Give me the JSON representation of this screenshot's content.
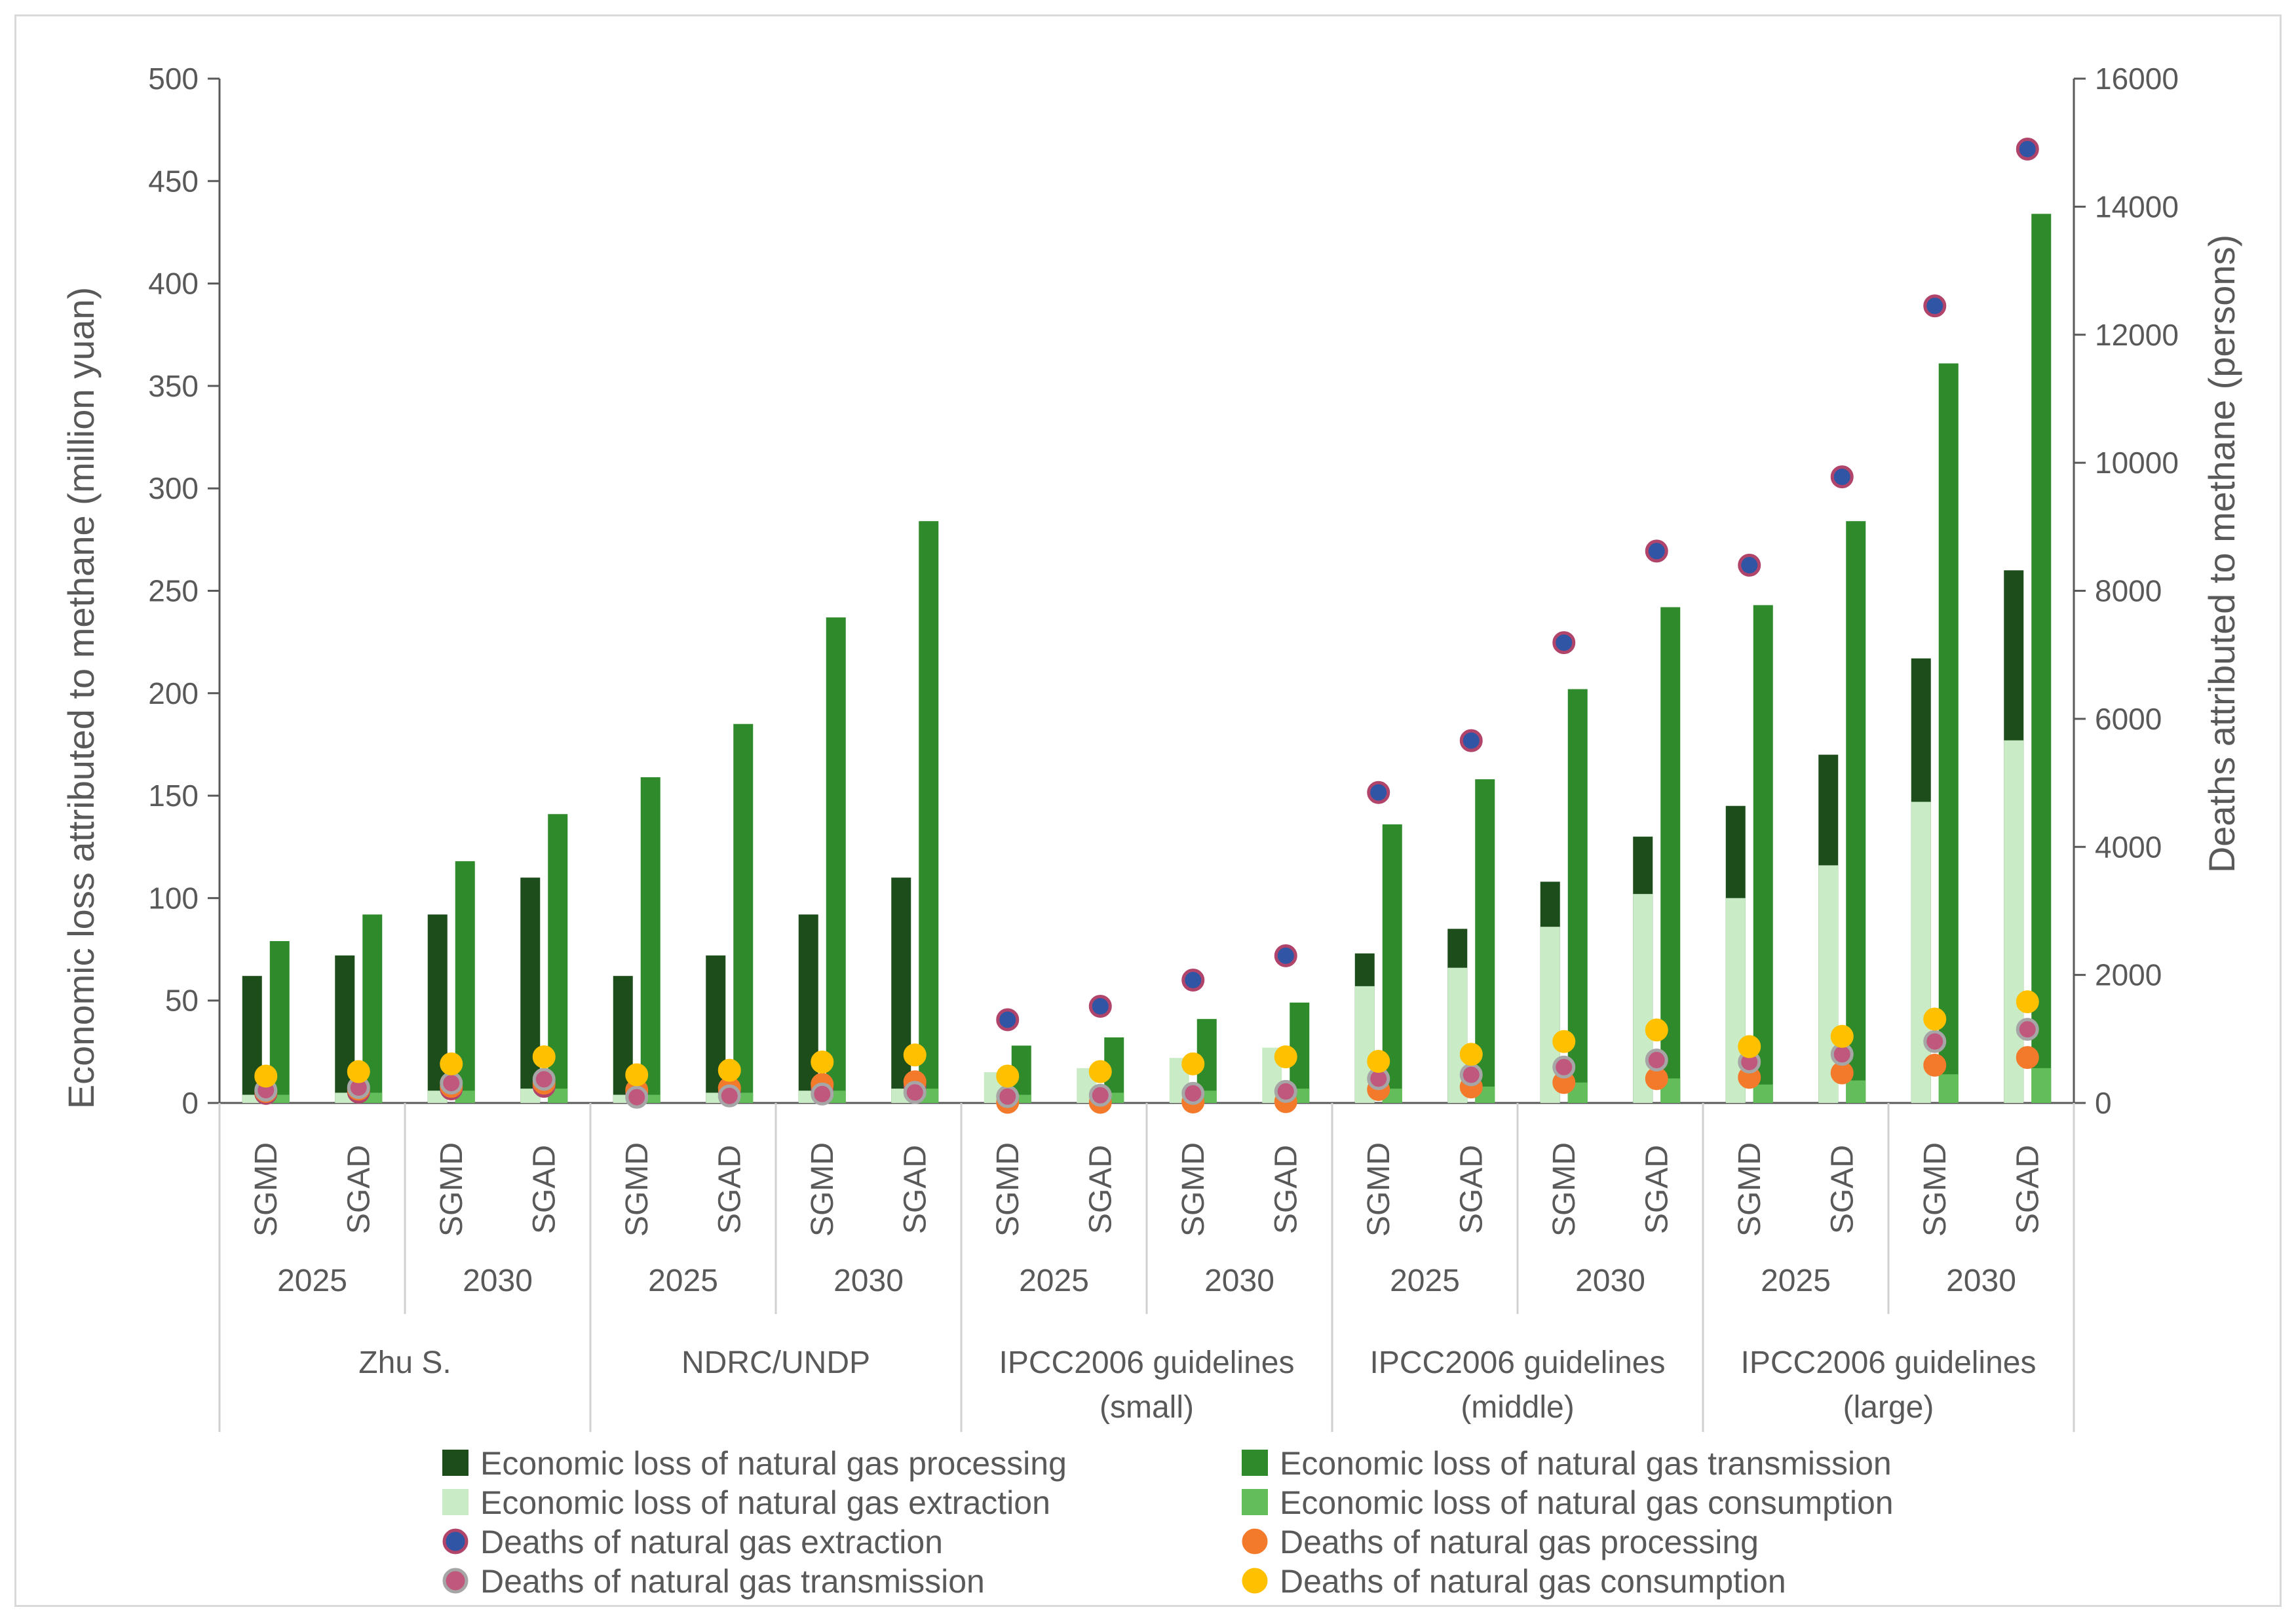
{
  "chart_data": {
    "type": "bar",
    "ylabel": "Economic loss attributed to methane (million yuan)",
    "y2label": "Deaths attributed to methane (persons)",
    "ylim": [
      0,
      500
    ],
    "y2lim": [
      0,
      16000
    ],
    "yticks": [
      "0",
      "50",
      "100",
      "150",
      "200",
      "250",
      "300",
      "350",
      "400",
      "450",
      "500"
    ],
    "y2ticks": [
      "0",
      "2000",
      "4000",
      "6000",
      "8000",
      "10000",
      "12000",
      "14000",
      "16000"
    ],
    "groups": [
      {
        "label": "Zhu S.",
        "label2": ""
      },
      {
        "label": "NDRC/UNDP",
        "label2": ""
      },
      {
        "label": "IPCC2006 guidelines",
        "label2": "(small)"
      },
      {
        "label": "IPCC2006 guidelines",
        "label2": "(middle)"
      },
      {
        "label": "IPCC2006 guidelines",
        "label2": "(large)"
      }
    ],
    "years": [
      "2025",
      "2030",
      "2025",
      "2030",
      "2025",
      "2030",
      "2025",
      "2030",
      "2025",
      "2030"
    ],
    "scenarios": [
      "SGMD",
      "SGAD",
      "SGMD",
      "SGAD",
      "SGMD",
      "SGAD",
      "SGMD",
      "SGAD",
      "SGMD",
      "SGAD",
      "SGMD",
      "SGAD",
      "SGMD",
      "SGAD",
      "SGMD",
      "SGAD",
      "SGMD",
      "SGAD",
      "SGMD",
      "SGAD"
    ],
    "series": [
      {
        "name": "Economic loss of natural gas processing",
        "kind": "bar",
        "color": "#1e4d1c",
        "values": [
          62,
          72,
          92,
          110,
          62,
          72,
          92,
          110,
          0,
          0,
          0,
          0,
          73,
          85,
          108,
          130,
          145,
          170,
          217,
          260
        ]
      },
      {
        "name": "Economic loss of natural gas transmission",
        "kind": "bar",
        "color": "#2e8a2a",
        "values": [
          79,
          92,
          118,
          141,
          159,
          185,
          237,
          284,
          28,
          32,
          41,
          49,
          136,
          158,
          202,
          242,
          243,
          284,
          361,
          434
        ]
      },
      {
        "name": "Economic loss of natural gas extraction",
        "kind": "bar",
        "color": "#c9ebc6",
        "values": [
          4,
          5,
          6,
          7,
          4,
          5,
          6,
          7,
          15,
          17,
          22,
          27,
          57,
          66,
          86,
          102,
          100,
          116,
          147,
          177
        ]
      },
      {
        "name": "Economic loss of natural gas consumption",
        "kind": "bar",
        "color": "#63bd5a",
        "values": [
          4,
          5,
          6,
          7,
          4,
          5,
          6,
          7,
          4,
          5,
          6,
          7,
          7,
          8,
          10,
          12,
          9,
          11,
          14,
          17
        ]
      },
      {
        "name": "Deaths of natural gas extraction",
        "kind": "dot",
        "color": "#2f55a4",
        "edge": "#b0446a",
        "values": [
          150,
          170,
          220,
          260,
          150,
          170,
          220,
          260,
          1300,
          1510,
          1920,
          2300,
          4850,
          5660,
          7190,
          8620,
          8400,
          9780,
          12450,
          14900
        ]
      },
      {
        "name": "Deaths of natural gas processing",
        "kind": "dot",
        "color": "#f47a2b",
        "edge": "#f47a2b",
        "values": [
          180,
          215,
          260,
          310,
          200,
          230,
          290,
          330,
          10,
          10,
          15,
          20,
          210,
          250,
          320,
          380,
          400,
          470,
          590,
          710
        ]
      },
      {
        "name": "Deaths of natural gas transmission",
        "kind": "dot",
        "color": "#c0587e",
        "edge": "#a6a6a6",
        "values": [
          200,
          240,
          310,
          370,
          90,
          110,
          140,
          165,
          100,
          120,
          150,
          180,
          380,
          440,
          560,
          670,
          640,
          760,
          960,
          1150
        ]
      },
      {
        "name": "Deaths of natural gas consumption",
        "kind": "dot",
        "color": "#ffc000",
        "edge": "#ffc000",
        "values": [
          420,
          490,
          610,
          720,
          440,
          510,
          640,
          750,
          420,
          490,
          610,
          720,
          650,
          760,
          960,
          1140,
          880,
          1040,
          1310,
          1580
        ]
      }
    ]
  }
}
